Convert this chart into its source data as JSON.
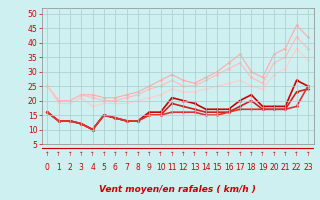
{
  "x": [
    0,
    1,
    2,
    3,
    4,
    5,
    6,
    7,
    8,
    9,
    10,
    11,
    12,
    13,
    14,
    15,
    16,
    17,
    18,
    19,
    20,
    21,
    22,
    23
  ],
  "line1": [
    25,
    20,
    20,
    22,
    22,
    21,
    21,
    22,
    23,
    25,
    27,
    29,
    27,
    26,
    28,
    30,
    33,
    36,
    30,
    28,
    36,
    38,
    46,
    42
  ],
  "line2": [
    25,
    20,
    20,
    22,
    21,
    20,
    20,
    21,
    22,
    24,
    25,
    27,
    25,
    25,
    27,
    29,
    31,
    33,
    28,
    26,
    33,
    35,
    42,
    38
  ],
  "line3": [
    25,
    19,
    19,
    21,
    18,
    19,
    19,
    19,
    20,
    21,
    22,
    24,
    23,
    23,
    24,
    25,
    26,
    27,
    25,
    24,
    29,
    31,
    38,
    34
  ],
  "line4": [
    16,
    13,
    13,
    12,
    10,
    15,
    14,
    13,
    13,
    16,
    16,
    21,
    20,
    19,
    17,
    17,
    17,
    20,
    22,
    18,
    18,
    18,
    27,
    25
  ],
  "line5": [
    16,
    13,
    13,
    12,
    10,
    15,
    14,
    13,
    13,
    15,
    15,
    19,
    18,
    17,
    16,
    16,
    16,
    18,
    20,
    17,
    17,
    17,
    23,
    24
  ],
  "line6": [
    16,
    13,
    13,
    12,
    10,
    15,
    14,
    13,
    13,
    15,
    15,
    16,
    16,
    16,
    15,
    15,
    16,
    17,
    17,
    17,
    17,
    17,
    18,
    25
  ],
  "colors_light": [
    "#ffaaaa",
    "#ffbbbb",
    "#ffcccc"
  ],
  "colors_dark": [
    "#cc0000",
    "#cc2222",
    "#dd3333"
  ],
  "lw_light": 0.8,
  "lw_dark": 1.2,
  "marker": "D",
  "markersize": 1.8,
  "background_color": "#cff0f0",
  "grid_color": "#aacccc",
  "xlabel": "Vent moyen/en rafales ( km/h )",
  "xlabel_color": "#cc0000",
  "xlabel_fontsize": 6.5,
  "tick_color": "#cc0000",
  "tick_fontsize": 5.5,
  "ylim": [
    5,
    52
  ],
  "xlim": [
    -0.5,
    23.5
  ],
  "yticks": [
    5,
    10,
    15,
    20,
    25,
    30,
    35,
    40,
    45,
    50
  ],
  "xticks": [
    0,
    1,
    2,
    3,
    4,
    5,
    6,
    7,
    8,
    9,
    10,
    11,
    12,
    13,
    14,
    15,
    16,
    17,
    18,
    19,
    20,
    21,
    22,
    23
  ],
  "arrow_char": "↑",
  "arrow_fontsize": 4.0,
  "spine_color": "#888888"
}
